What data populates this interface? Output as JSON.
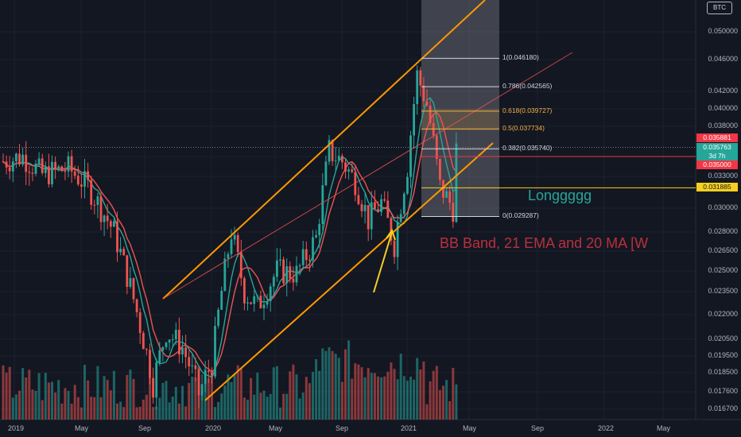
{
  "chart_data": {
    "type": "candlestick",
    "symbol_badge": "BTC",
    "y_ticks": [
      "0.050000",
      "0.046000",
      "0.042000",
      "0.040000",
      "0.038000",
      "0.035000",
      "0.033000",
      "0.030000",
      "0.028000",
      "0.026500",
      "0.025000",
      "0.023500",
      "0.022000",
      "0.020500",
      "0.019500",
      "0.018500",
      "0.017600",
      "0.016700"
    ],
    "x_ticks": [
      "2019",
      "May",
      "Sep",
      "2020",
      "May",
      "Sep",
      "2021",
      "May",
      "Sep",
      "2022",
      "May"
    ],
    "price_tags": [
      {
        "label": "0.035881",
        "color": "#f23645"
      },
      {
        "label": "0.035763",
        "color": "#26a69a"
      },
      {
        "label": "3d 7h",
        "color": "#26a69a"
      },
      {
        "label": "0.035000",
        "color": "#f23645"
      },
      {
        "label": "0.031885",
        "color": "#f5d020"
      }
    ],
    "fib_levels": [
      {
        "label": "1(0.046180)",
        "value": 0.04618
      },
      {
        "label": "0.786(0.042565)",
        "value": 0.042565
      },
      {
        "label": "0.618(0.039727)",
        "value": 0.039727
      },
      {
        "label": "0.5(0.037734)",
        "value": 0.037734
      },
      {
        "label": "0.382(0.035740)",
        "value": 0.03574
      },
      {
        "label": "0(0.029287)",
        "value": 0.029287
      }
    ],
    "horizontal_lines": [
      0.035881,
      0.035,
      0.031885
    ],
    "annotations": {
      "long_note": "Longgggg",
      "indicator_note": "BB Band, 21 EMA and 20 MA [W"
    },
    "colors": {
      "background": "#131722",
      "up": "#26a69a",
      "down": "#ef5350",
      "channel": "#ff9800",
      "ema": "#26a69a",
      "ma": "#ef5350",
      "fib_zone": "#787b86"
    }
  }
}
